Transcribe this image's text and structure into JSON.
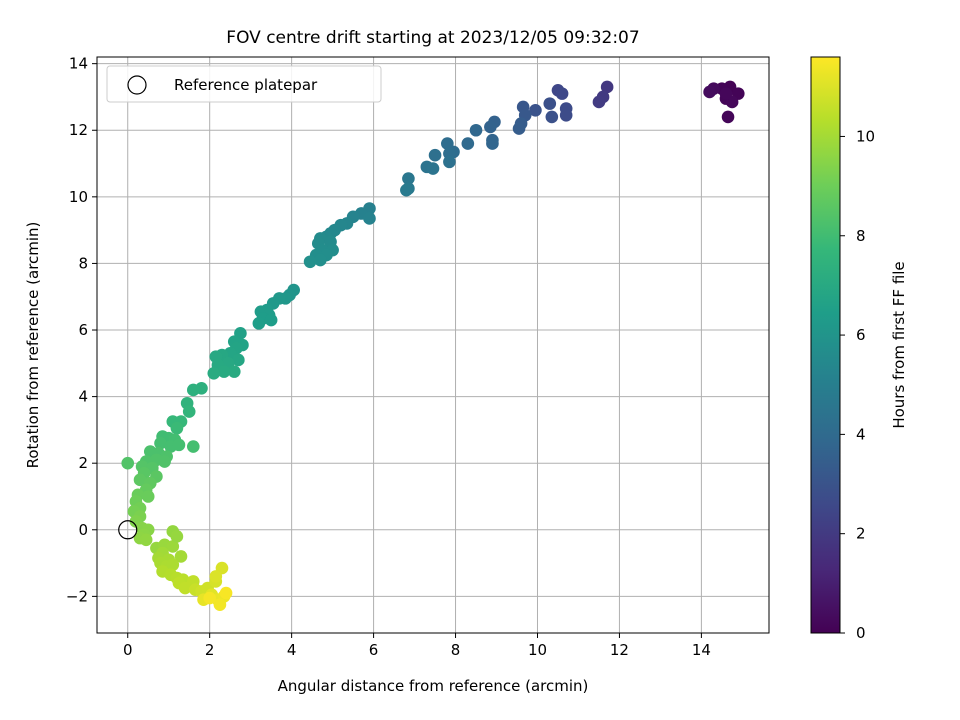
{
  "chart_data": {
    "type": "scatter",
    "title": "FOV centre drift starting at 2023/12/05 09:32:07",
    "xlabel": "Angular distance from reference (arcmin)",
    "ylabel": "Rotation from reference (arcmin)",
    "xlim": [
      -0.75,
      15.65
    ],
    "ylim": [
      -3.1,
      14.2
    ],
    "xticks": [
      0,
      2,
      4,
      6,
      8,
      10,
      12,
      14
    ],
    "yticks": [
      -2,
      0,
      2,
      4,
      6,
      8,
      10,
      12,
      14
    ],
    "grid": true,
    "legend": {
      "location": "top-left",
      "entries": [
        {
          "label": "Reference platepar",
          "marker": "open-circle",
          "x": 0,
          "y": 0
        }
      ]
    },
    "colorbar": {
      "label": "Hours from first FF file",
      "colormap": "viridis",
      "range": [
        0,
        11.6
      ],
      "ticks": [
        0,
        2,
        4,
        6,
        8,
        10
      ]
    },
    "points": [
      {
        "x": 14.7,
        "y": 13.3,
        "c": 0.05
      },
      {
        "x": 14.5,
        "y": 13.25,
        "c": 0.1
      },
      {
        "x": 14.9,
        "y": 13.1,
        "c": 0.1
      },
      {
        "x": 14.6,
        "y": 12.95,
        "c": 0.15
      },
      {
        "x": 14.75,
        "y": 12.85,
        "c": 0.2
      },
      {
        "x": 14.65,
        "y": 12.4,
        "c": 0.15
      },
      {
        "x": 14.3,
        "y": 13.25,
        "c": 0.3
      },
      {
        "x": 14.2,
        "y": 13.15,
        "c": 0.35
      },
      {
        "x": 14.6,
        "y": 13.1,
        "c": 0.2
      },
      {
        "x": 11.7,
        "y": 13.3,
        "c": 1.9
      },
      {
        "x": 11.6,
        "y": 13.0,
        "c": 2.0
      },
      {
        "x": 11.5,
        "y": 12.85,
        "c": 2.05
      },
      {
        "x": 10.5,
        "y": 13.2,
        "c": 2.5
      },
      {
        "x": 10.6,
        "y": 13.1,
        "c": 2.55
      },
      {
        "x": 10.7,
        "y": 12.65,
        "c": 2.65
      },
      {
        "x": 10.7,
        "y": 12.45,
        "c": 2.7
      },
      {
        "x": 10.3,
        "y": 12.8,
        "c": 2.85
      },
      {
        "x": 10.35,
        "y": 12.4,
        "c": 2.9
      },
      {
        "x": 9.95,
        "y": 12.6,
        "c": 3.0
      },
      {
        "x": 9.65,
        "y": 12.7,
        "c": 3.15
      },
      {
        "x": 9.7,
        "y": 12.45,
        "c": 3.2
      },
      {
        "x": 9.6,
        "y": 12.2,
        "c": 3.35
      },
      {
        "x": 9.55,
        "y": 12.05,
        "c": 3.4
      },
      {
        "x": 8.95,
        "y": 12.25,
        "c": 3.6
      },
      {
        "x": 8.85,
        "y": 12.1,
        "c": 3.65
      },
      {
        "x": 8.9,
        "y": 11.7,
        "c": 3.75
      },
      {
        "x": 8.9,
        "y": 11.6,
        "c": 3.8
      },
      {
        "x": 8.5,
        "y": 12.0,
        "c": 3.85
      },
      {
        "x": 8.3,
        "y": 11.6,
        "c": 3.95
      },
      {
        "x": 7.95,
        "y": 11.35,
        "c": 4.05
      },
      {
        "x": 7.8,
        "y": 11.6,
        "c": 4.1
      },
      {
        "x": 7.85,
        "y": 11.3,
        "c": 4.15
      },
      {
        "x": 7.5,
        "y": 11.25,
        "c": 4.25
      },
      {
        "x": 7.85,
        "y": 11.05,
        "c": 4.3
      },
      {
        "x": 7.3,
        "y": 10.9,
        "c": 4.4
      },
      {
        "x": 7.45,
        "y": 10.85,
        "c": 4.45
      },
      {
        "x": 6.85,
        "y": 10.55,
        "c": 4.6
      },
      {
        "x": 6.85,
        "y": 10.25,
        "c": 4.7
      },
      {
        "x": 6.8,
        "y": 10.2,
        "c": 4.75
      },
      {
        "x": 5.9,
        "y": 9.65,
        "c": 5.05
      },
      {
        "x": 5.7,
        "y": 9.5,
        "c": 5.1
      },
      {
        "x": 5.9,
        "y": 9.35,
        "c": 5.15
      },
      {
        "x": 5.5,
        "y": 9.4,
        "c": 5.2
      },
      {
        "x": 5.35,
        "y": 9.2,
        "c": 5.3
      },
      {
        "x": 5.2,
        "y": 9.15,
        "c": 5.35
      },
      {
        "x": 5.05,
        "y": 9.0,
        "c": 5.4
      },
      {
        "x": 4.95,
        "y": 8.9,
        "c": 5.45
      },
      {
        "x": 4.85,
        "y": 8.8,
        "c": 5.5
      },
      {
        "x": 4.7,
        "y": 8.75,
        "c": 5.55
      },
      {
        "x": 4.65,
        "y": 8.6,
        "c": 5.6
      },
      {
        "x": 4.95,
        "y": 8.65,
        "c": 5.55
      },
      {
        "x": 4.75,
        "y": 8.4,
        "c": 5.65
      },
      {
        "x": 5.0,
        "y": 8.4,
        "c": 5.65
      },
      {
        "x": 4.85,
        "y": 8.25,
        "c": 5.7
      },
      {
        "x": 4.6,
        "y": 8.25,
        "c": 5.7
      },
      {
        "x": 4.7,
        "y": 8.1,
        "c": 5.75
      },
      {
        "x": 4.45,
        "y": 8.05,
        "c": 5.8
      },
      {
        "x": 4.05,
        "y": 7.2,
        "c": 6.0
      },
      {
        "x": 3.95,
        "y": 7.05,
        "c": 6.05
      },
      {
        "x": 3.85,
        "y": 6.95,
        "c": 6.1
      },
      {
        "x": 3.7,
        "y": 6.95,
        "c": 6.15
      },
      {
        "x": 3.55,
        "y": 6.8,
        "c": 6.2
      },
      {
        "x": 3.4,
        "y": 6.6,
        "c": 6.3
      },
      {
        "x": 3.25,
        "y": 6.55,
        "c": 6.35
      },
      {
        "x": 3.45,
        "y": 6.45,
        "c": 6.35
      },
      {
        "x": 3.3,
        "y": 6.35,
        "c": 6.4
      },
      {
        "x": 3.2,
        "y": 6.2,
        "c": 6.45
      },
      {
        "x": 3.5,
        "y": 6.3,
        "c": 6.4
      },
      {
        "x": 2.75,
        "y": 5.9,
        "c": 6.6
      },
      {
        "x": 2.8,
        "y": 5.55,
        "c": 6.7
      },
      {
        "x": 2.6,
        "y": 5.65,
        "c": 6.7
      },
      {
        "x": 2.65,
        "y": 5.45,
        "c": 6.75
      },
      {
        "x": 2.5,
        "y": 5.3,
        "c": 6.8
      },
      {
        "x": 2.7,
        "y": 5.1,
        "c": 6.85
      },
      {
        "x": 2.3,
        "y": 5.25,
        "c": 6.9
      },
      {
        "x": 2.15,
        "y": 5.2,
        "c": 6.95
      },
      {
        "x": 2.45,
        "y": 5.0,
        "c": 6.95
      },
      {
        "x": 2.2,
        "y": 4.95,
        "c": 7.0
      },
      {
        "x": 2.6,
        "y": 4.75,
        "c": 7.05
      },
      {
        "x": 2.35,
        "y": 4.75,
        "c": 7.05
      },
      {
        "x": 2.1,
        "y": 4.7,
        "c": 7.1
      },
      {
        "x": 1.8,
        "y": 4.25,
        "c": 7.3
      },
      {
        "x": 1.6,
        "y": 4.2,
        "c": 7.35
      },
      {
        "x": 1.45,
        "y": 3.8,
        "c": 7.5
      },
      {
        "x": 1.5,
        "y": 3.55,
        "c": 7.6
      },
      {
        "x": 1.1,
        "y": 3.25,
        "c": 7.75
      },
      {
        "x": 1.3,
        "y": 3.25,
        "c": 7.75
      },
      {
        "x": 1.2,
        "y": 3.05,
        "c": 7.85
      },
      {
        "x": 0.85,
        "y": 2.8,
        "c": 8.0
      },
      {
        "x": 1.0,
        "y": 2.75,
        "c": 8.0
      },
      {
        "x": 1.15,
        "y": 2.7,
        "c": 8.05
      },
      {
        "x": 0.8,
        "y": 2.6,
        "c": 8.1
      },
      {
        "x": 1.05,
        "y": 2.5,
        "c": 8.1
      },
      {
        "x": 1.25,
        "y": 2.55,
        "c": 8.1
      },
      {
        "x": 1.6,
        "y": 2.5,
        "c": 8.1
      },
      {
        "x": 0.55,
        "y": 2.35,
        "c": 8.25
      },
      {
        "x": 0.75,
        "y": 2.3,
        "c": 8.25
      },
      {
        "x": 0.95,
        "y": 2.2,
        "c": 8.3
      },
      {
        "x": 0.7,
        "y": 2.1,
        "c": 8.35
      },
      {
        "x": 0.9,
        "y": 2.05,
        "c": 8.35
      },
      {
        "x": 0.45,
        "y": 2.05,
        "c": 8.35
      },
      {
        "x": 0.35,
        "y": 1.9,
        "c": 8.45
      },
      {
        "x": 0.6,
        "y": 1.85,
        "c": 8.45
      },
      {
        "x": 0.0,
        "y": 2.0,
        "c": 8.4
      },
      {
        "x": 0.4,
        "y": 1.7,
        "c": 8.55
      },
      {
        "x": 0.7,
        "y": 1.6,
        "c": 8.6
      },
      {
        "x": 0.3,
        "y": 1.5,
        "c": 8.65
      },
      {
        "x": 0.55,
        "y": 1.4,
        "c": 8.7
      },
      {
        "x": 0.45,
        "y": 1.2,
        "c": 8.8
      },
      {
        "x": 0.25,
        "y": 1.05,
        "c": 8.9
      },
      {
        "x": 0.5,
        "y": 1.0,
        "c": 8.9
      },
      {
        "x": 0.2,
        "y": 0.85,
        "c": 9.0
      },
      {
        "x": 0.3,
        "y": 0.65,
        "c": 9.1
      },
      {
        "x": 0.15,
        "y": 0.55,
        "c": 9.15
      },
      {
        "x": 0.3,
        "y": 0.4,
        "c": 9.25
      },
      {
        "x": 0.2,
        "y": 0.25,
        "c": 9.35
      },
      {
        "x": 0.35,
        "y": 0.05,
        "c": 9.45
      },
      {
        "x": 0.5,
        "y": 0.0,
        "c": 9.5
      },
      {
        "x": 0.4,
        "y": -0.15,
        "c": 9.55
      },
      {
        "x": 0.3,
        "y": -0.25,
        "c": 9.6
      },
      {
        "x": 0.45,
        "y": -0.3,
        "c": 9.65
      },
      {
        "x": 0.7,
        "y": -0.55,
        "c": 9.75
      },
      {
        "x": 0.9,
        "y": -0.45,
        "c": 9.8
      },
      {
        "x": 1.1,
        "y": -0.5,
        "c": 9.85
      },
      {
        "x": 1.1,
        "y": -0.05,
        "c": 9.7
      },
      {
        "x": 1.2,
        "y": -0.2,
        "c": 9.75
      },
      {
        "x": 1.3,
        "y": -0.8,
        "c": 10.0
      },
      {
        "x": 0.85,
        "y": -0.7,
        "c": 9.95
      },
      {
        "x": 0.75,
        "y": -0.85,
        "c": 10.0
      },
      {
        "x": 1.0,
        "y": -0.9,
        "c": 10.05
      },
      {
        "x": 0.8,
        "y": -1.0,
        "c": 10.1
      },
      {
        "x": 0.95,
        "y": -1.1,
        "c": 10.15
      },
      {
        "x": 1.1,
        "y": -1.05,
        "c": 10.15
      },
      {
        "x": 0.85,
        "y": -1.25,
        "c": 10.25
      },
      {
        "x": 1.05,
        "y": -1.35,
        "c": 10.3
      },
      {
        "x": 1.2,
        "y": -1.45,
        "c": 10.35
      },
      {
        "x": 1.35,
        "y": -1.5,
        "c": 10.4
      },
      {
        "x": 1.25,
        "y": -1.6,
        "c": 10.45
      },
      {
        "x": 1.4,
        "y": -1.75,
        "c": 10.5
      },
      {
        "x": 1.6,
        "y": -1.55,
        "c": 10.5
      },
      {
        "x": 1.65,
        "y": -1.8,
        "c": 10.65
      },
      {
        "x": 1.8,
        "y": -1.85,
        "c": 10.75
      },
      {
        "x": 1.95,
        "y": -1.75,
        "c": 10.8
      },
      {
        "x": 2.15,
        "y": -1.55,
        "c": 10.9
      },
      {
        "x": 2.3,
        "y": -1.15,
        "c": 10.95
      },
      {
        "x": 2.15,
        "y": -1.4,
        "c": 11.0
      },
      {
        "x": 2.05,
        "y": -1.95,
        "c": 11.1
      },
      {
        "x": 1.85,
        "y": -2.1,
        "c": 11.2
      },
      {
        "x": 2.2,
        "y": -2.1,
        "c": 11.25
      },
      {
        "x": 2.35,
        "y": -2.0,
        "c": 11.3
      },
      {
        "x": 2.25,
        "y": -2.25,
        "c": 11.4
      },
      {
        "x": 2.0,
        "y": -2.05,
        "c": 11.45
      },
      {
        "x": 2.4,
        "y": -1.9,
        "c": 11.5
      }
    ]
  }
}
